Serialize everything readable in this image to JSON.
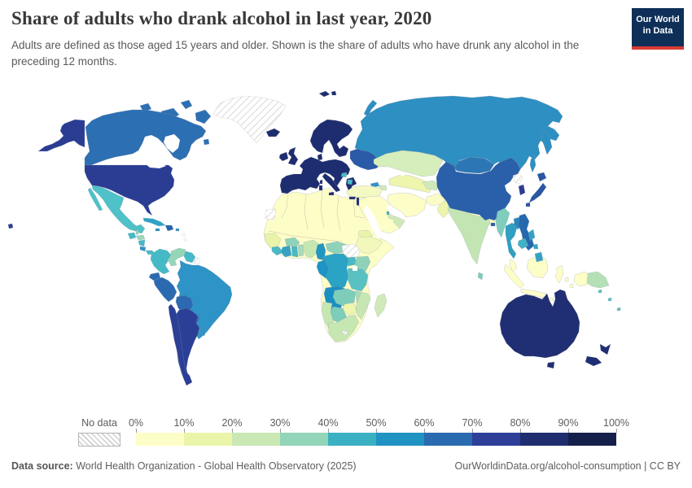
{
  "header": {
    "title": "Share of adults who drank alcohol in last year, 2020",
    "subtitle": "Adults are defined as those aged 15 years and older. Shown is the share of adults who have drunk any alcohol in the preceding 12 months.",
    "logo": {
      "line1": "Our World",
      "line2": "in Data",
      "bg": "#0e2f57",
      "accent": "#d93a32"
    }
  },
  "legend": {
    "no_data_label": "No data",
    "tick_labels": [
      "0%",
      "10%",
      "20%",
      "30%",
      "40%",
      "50%",
      "60%",
      "70%",
      "80%",
      "90%",
      "100%"
    ],
    "colors": [
      "#fdfdc8",
      "#eaf5aa",
      "#c9e8b3",
      "#93d5b9",
      "#3cb0c3",
      "#2093c2",
      "#2a6ab0",
      "#2e3f99",
      "#1f2d6e",
      "#15204a"
    ]
  },
  "footer": {
    "source_label": "Data source:",
    "source_text": " World Health Organization - Global Health Observatory (2025)",
    "right_text": "OurWorldinData.org/alcohol-consumption | CC BY"
  },
  "map": {
    "water_color": "#ffffff",
    "border_color": "#8f9aa5",
    "no_data_pattern": "diagonal-hatch",
    "regions": [
      {
        "id": "greenland",
        "fill": "hatch"
      },
      {
        "id": "canada",
        "fill": "#2d6fb3"
      },
      {
        "id": "usa",
        "fill": "#2b3d93"
      },
      {
        "id": "mexico",
        "fill": "#4fc1c8"
      },
      {
        "id": "guatemala",
        "fill": "#45bac6"
      },
      {
        "id": "belize",
        "fill": "#9ad8b9"
      },
      {
        "id": "honduras",
        "fill": "#9ad8b9"
      },
      {
        "id": "nicaragua",
        "fill": "#45bac6"
      },
      {
        "id": "costa-rica",
        "fill": "#2e93c6"
      },
      {
        "id": "panama",
        "fill": "#45bac6"
      },
      {
        "id": "cuba",
        "fill": "#2fa3c6"
      },
      {
        "id": "jamaica",
        "fill": "#2196c0"
      },
      {
        "id": "hispaniola",
        "fill": "#2565ae"
      },
      {
        "id": "puerto-rico",
        "fill": "#2e93c6"
      },
      {
        "id": "antilles",
        "fill": "hatch"
      },
      {
        "id": "colombia",
        "fill": "#45bac6"
      },
      {
        "id": "venezuela",
        "fill": "#96d6b8"
      },
      {
        "id": "guyanas",
        "fill": "#45bac6"
      },
      {
        "id": "french-guiana",
        "fill": "hatch"
      },
      {
        "id": "brazil",
        "fill": "#2e93c6"
      },
      {
        "id": "ecuador",
        "fill": "#2b6ab1"
      },
      {
        "id": "peru",
        "fill": "#2b6ab1"
      },
      {
        "id": "bolivia",
        "fill": "#2b6ab1"
      },
      {
        "id": "paraguay",
        "fill": "#2b6ab1"
      },
      {
        "id": "uruguay",
        "fill": "#2e93c6"
      },
      {
        "id": "argentina",
        "fill": "#2b3f96"
      },
      {
        "id": "chile",
        "fill": "#2b3f96"
      },
      {
        "id": "iceland",
        "fill": "#1e2d6f"
      },
      {
        "id": "ireland",
        "fill": "#1e2d6f"
      },
      {
        "id": "uk",
        "fill": "#1e2d6f"
      },
      {
        "id": "scandinavia",
        "fill": "#1e2d6f"
      },
      {
        "id": "denmark",
        "fill": "#1e2d6f"
      },
      {
        "id": "svalbard",
        "fill": "#1e2d6f"
      },
      {
        "id": "europe-main",
        "fill": "#1e2d6f"
      },
      {
        "id": "italy",
        "fill": "#1e2d6f"
      },
      {
        "id": "greece",
        "fill": "#1e2d6f"
      },
      {
        "id": "crete",
        "fill": "#1e2d6f"
      },
      {
        "id": "cyprus",
        "fill": "#1e2d6f"
      },
      {
        "id": "bosnia",
        "fill": "#45bac6"
      },
      {
        "id": "albania-macedonia",
        "fill": "#45bac6"
      },
      {
        "id": "eastern-europe",
        "fill": "#2b5aa7"
      },
      {
        "id": "russia",
        "fill": "#2e8fc2"
      },
      {
        "id": "kazakhstan",
        "fill": "#d5eebb"
      },
      {
        "id": "georgia",
        "fill": "#2e93c6"
      },
      {
        "id": "azerbaijan",
        "fill": "#cfeab8"
      },
      {
        "id": "central-asia",
        "fill": "#eef5ad"
      },
      {
        "id": "kyrgyz-tajik",
        "fill": "#cfeab8"
      },
      {
        "id": "turkey",
        "fill": "#f4f8c2"
      },
      {
        "id": "middle-east",
        "fill": "#fdfdc8"
      },
      {
        "id": "israel",
        "fill": "#1e2d6f"
      },
      {
        "id": "oman",
        "fill": "#cfeab8"
      },
      {
        "id": "uae",
        "fill": "#cfeab8"
      },
      {
        "id": "bahrain",
        "fill": "#41b2c4"
      },
      {
        "id": "iran",
        "fill": "#fdfdc8"
      },
      {
        "id": "afghanistan",
        "fill": "#fbfbc6"
      },
      {
        "id": "pakistan",
        "fill": "#edf5ad"
      },
      {
        "id": "india",
        "fill": "#c3e5b4"
      },
      {
        "id": "nepal",
        "fill": "#fdfdc9"
      },
      {
        "id": "bangladesh",
        "fill": "#fdfdc9"
      },
      {
        "id": "sri-lanka",
        "fill": "#7ecdbb"
      },
      {
        "id": "china",
        "fill": "#2a5fa9"
      },
      {
        "id": "mongolia",
        "fill": "#2c76b5"
      },
      {
        "id": "taiwan",
        "fill": "#2e93c6"
      },
      {
        "id": "north-korea",
        "fill": "hatch"
      },
      {
        "id": "south-korea",
        "fill": "#2e3a92"
      },
      {
        "id": "japan",
        "fill": "#2a56a5"
      },
      {
        "id": "myanmar",
        "fill": "#7fcebc"
      },
      {
        "id": "thailand",
        "fill": "#2f9fc2"
      },
      {
        "id": "laos",
        "fill": "#2a87bb"
      },
      {
        "id": "vietnam",
        "fill": "#2568ae"
      },
      {
        "id": "cambodia",
        "fill": "#41b2c4"
      },
      {
        "id": "malaysia",
        "fill": "#fdfdc8"
      },
      {
        "id": "indonesia",
        "fill": "#fdfdc8"
      },
      {
        "id": "png",
        "fill": "#b5e0b6"
      },
      {
        "id": "philippines",
        "fill": "#35a2c5"
      },
      {
        "id": "australia",
        "fill": "#202f73"
      },
      {
        "id": "new-zealand",
        "fill": "#202f73"
      },
      {
        "id": "pacific-islands",
        "fill": "#59c1c2"
      },
      {
        "id": "africa-sahara",
        "fill": "#fdfdc8"
      },
      {
        "id": "western-sahara",
        "fill": "hatch"
      },
      {
        "id": "senegal-guinea",
        "fill": "#e9f4a8"
      },
      {
        "id": "sierra-leone-liberia",
        "fill": "#49b9c5"
      },
      {
        "id": "ivory-coast",
        "fill": "#35a2c5"
      },
      {
        "id": "ghana",
        "fill": "#49b9c5"
      },
      {
        "id": "togo-benin",
        "fill": "#a5dbb8"
      },
      {
        "id": "burkina-faso",
        "fill": "#8fd2ba"
      },
      {
        "id": "nigeria",
        "fill": "#c6e7b2"
      },
      {
        "id": "cameroon",
        "fill": "#2196c0"
      },
      {
        "id": "central-african-republic",
        "fill": "#8fd2ba"
      },
      {
        "id": "south-sudan",
        "fill": "hatch"
      },
      {
        "id": "ethiopia",
        "fill": "#f2f8bc"
      },
      {
        "id": "eritrea",
        "fill": "#e9f4a8"
      },
      {
        "id": "uganda",
        "fill": "#49b9c5"
      },
      {
        "id": "kenya",
        "fill": "#8fd2ba"
      },
      {
        "id": "drc",
        "fill": "#2ba3c4"
      },
      {
        "id": "gabon-congo",
        "fill": "#1f93c3"
      },
      {
        "id": "angola",
        "fill": "#1a8fc1"
      },
      {
        "id": "rwanda-burundi",
        "fill": "#41b2c4"
      },
      {
        "id": "tanzania",
        "fill": "#59c1c2"
      },
      {
        "id": "zambia",
        "fill": "#7ecdbb"
      },
      {
        "id": "malawi",
        "fill": "#a5dbb8"
      },
      {
        "id": "mozambique",
        "fill": "#c6e7b2"
      },
      {
        "id": "zimbabwe",
        "fill": "#eef5ad"
      },
      {
        "id": "botswana",
        "fill": "#7ecdbb"
      },
      {
        "id": "namibia",
        "fill": "#c6e7b2"
      },
      {
        "id": "south-africa",
        "fill": "#c6e7b2"
      },
      {
        "id": "lesotho",
        "fill": "hatch"
      },
      {
        "id": "madagascar",
        "fill": "#cfeab8"
      }
    ]
  },
  "chart_data": {
    "type": "choropleth_map",
    "title": "Share of adults who drank alcohol in last year, 2020",
    "unit": "% of adults (15+) who drank alcohol in preceding 12 months",
    "legend_bins": [
      {
        "range": "0-10%",
        "color": "#fdfdc8"
      },
      {
        "range": "10-20%",
        "color": "#eaf5aa"
      },
      {
        "range": "20-30%",
        "color": "#c9e8b3"
      },
      {
        "range": "30-40%",
        "color": "#93d5b9"
      },
      {
        "range": "40-50%",
        "color": "#3cb0c3"
      },
      {
        "range": "50-60%",
        "color": "#2093c2"
      },
      {
        "range": "60-70%",
        "color": "#2a6ab0"
      },
      {
        "range": "70-80%",
        "color": "#2e3f99"
      },
      {
        "range": "80-90%",
        "color": "#1f2d6e"
      },
      {
        "range": "90-100%",
        "color": "#15204a"
      }
    ],
    "regions": [
      {
        "name": "United States",
        "value_bin": "70-80%"
      },
      {
        "name": "Canada",
        "value_bin": "60-70%"
      },
      {
        "name": "Greenland",
        "value_bin": "No data"
      },
      {
        "name": "Mexico",
        "value_bin": "40-50%"
      },
      {
        "name": "Guatemala",
        "value_bin": "40-50%"
      },
      {
        "name": "Honduras",
        "value_bin": "30-40%"
      },
      {
        "name": "Cuba",
        "value_bin": "50-60%"
      },
      {
        "name": "Colombia",
        "value_bin": "40-50%"
      },
      {
        "name": "Venezuela",
        "value_bin": "30-40%"
      },
      {
        "name": "Brazil",
        "value_bin": "50-60%"
      },
      {
        "name": "Peru",
        "value_bin": "60-70%"
      },
      {
        "name": "Bolivia",
        "value_bin": "60-70%"
      },
      {
        "name": "Paraguay",
        "value_bin": "60-70%"
      },
      {
        "name": "Uruguay",
        "value_bin": "50-60%"
      },
      {
        "name": "Argentina",
        "value_bin": "70-80%"
      },
      {
        "name": "Chile",
        "value_bin": "70-80%"
      },
      {
        "name": "United Kingdom",
        "value_bin": "80-90%"
      },
      {
        "name": "France",
        "value_bin": "80-90%"
      },
      {
        "name": "Germany",
        "value_bin": "80-90%"
      },
      {
        "name": "Spain",
        "value_bin": "80-90%"
      },
      {
        "name": "Italy",
        "value_bin": "80-90%"
      },
      {
        "name": "Sweden",
        "value_bin": "80-90%"
      },
      {
        "name": "Ukraine",
        "value_bin": "60-70%"
      },
      {
        "name": "Russia",
        "value_bin": "50-60%"
      },
      {
        "name": "Turkey",
        "value_bin": "10-20%"
      },
      {
        "name": "Kazakhstan",
        "value_bin": "20-30%"
      },
      {
        "name": "Saudi Arabia",
        "value_bin": "0-10%"
      },
      {
        "name": "Iran",
        "value_bin": "0-10%"
      },
      {
        "name": "Egypt",
        "value_bin": "0-10%"
      },
      {
        "name": "Algeria",
        "value_bin": "0-10%"
      },
      {
        "name": "Nigeria",
        "value_bin": "20-30%"
      },
      {
        "name": "Cameroon",
        "value_bin": "50-60%"
      },
      {
        "name": "DR Congo",
        "value_bin": "50-60%"
      },
      {
        "name": "Angola",
        "value_bin": "50-60%"
      },
      {
        "name": "Ethiopia",
        "value_bin": "10-20%"
      },
      {
        "name": "Kenya",
        "value_bin": "30-40%"
      },
      {
        "name": "Tanzania",
        "value_bin": "40-50%"
      },
      {
        "name": "South Africa",
        "value_bin": "20-30%"
      },
      {
        "name": "South Sudan",
        "value_bin": "No data"
      },
      {
        "name": "Madagascar",
        "value_bin": "20-30%"
      },
      {
        "name": "India",
        "value_bin": "20-30%"
      },
      {
        "name": "Pakistan",
        "value_bin": "10-20%"
      },
      {
        "name": "China",
        "value_bin": "60-70%"
      },
      {
        "name": "Mongolia",
        "value_bin": "60-70%"
      },
      {
        "name": "Myanmar",
        "value_bin": "30-40%"
      },
      {
        "name": "Thailand",
        "value_bin": "50-60%"
      },
      {
        "name": "Vietnam",
        "value_bin": "60-70%"
      },
      {
        "name": "Philippines",
        "value_bin": "50-60%"
      },
      {
        "name": "Indonesia",
        "value_bin": "0-10%"
      },
      {
        "name": "Malaysia",
        "value_bin": "0-10%"
      },
      {
        "name": "Papua New Guinea",
        "value_bin": "30-40%"
      },
      {
        "name": "Japan",
        "value_bin": "60-70%"
      },
      {
        "name": "South Korea",
        "value_bin": "70-80%"
      },
      {
        "name": "North Korea",
        "value_bin": "No data"
      },
      {
        "name": "Australia",
        "value_bin": "80-90%"
      },
      {
        "name": "New Zealand",
        "value_bin": "80-90%"
      },
      {
        "name": "Israel",
        "value_bin": "80-90%"
      },
      {
        "name": "Sri Lanka",
        "value_bin": "30-40%"
      }
    ]
  }
}
